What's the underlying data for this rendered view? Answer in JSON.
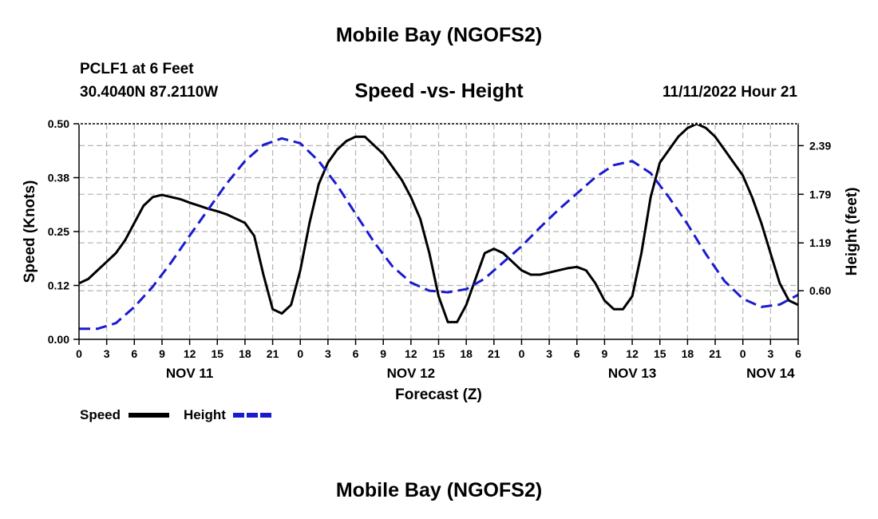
{
  "header": {
    "title": "Mobile Bay (NGOFS2)",
    "station": "PCLF1 at 6 Feet",
    "coordinates": "30.4040N  87.2110W",
    "subtitle": "Speed -vs- Height",
    "datetime": "11/11/2022 Hour 21",
    "footer_title": "Mobile Bay (NGOFS2)"
  },
  "chart_data": {
    "type": "line",
    "title": "Speed -vs- Height",
    "xlabel": "Forecast (Z)",
    "ylabel": "Speed (Knots)",
    "y2label": "Height (feet)",
    "grid": true,
    "xlim": [
      0,
      78
    ],
    "ylim": [
      0,
      0.5
    ],
    "y2lim": [
      0,
      2.66
    ],
    "x_tick_values": [
      0,
      3,
      6,
      9,
      12,
      15,
      18,
      21,
      24,
      27,
      30,
      33,
      36,
      39,
      42,
      45,
      48,
      51,
      54,
      57,
      60,
      63,
      66,
      69,
      72,
      75,
      78
    ],
    "x_tick_labels": [
      "0",
      "3",
      "6",
      "9",
      "12",
      "15",
      "18",
      "21",
      "0",
      "3",
      "6",
      "9",
      "12",
      "15",
      "18",
      "21",
      "0",
      "3",
      "6",
      "9",
      "12",
      "15",
      "18",
      "21",
      "0",
      "3",
      "6"
    ],
    "date_labels": [
      {
        "label": "NOV 11",
        "x": 12
      },
      {
        "label": "NOV 12",
        "x": 36
      },
      {
        "label": "NOV 13",
        "x": 60
      },
      {
        "label": "NOV 14",
        "x": 75
      }
    ],
    "y_tick_values": [
      0,
      0.125,
      0.25,
      0.375,
      0.5
    ],
    "y_tick_labels": [
      "0.00",
      "0.12",
      "0.25",
      "0.38",
      "0.50"
    ],
    "y2_tick_values": [
      0.6,
      1.19,
      1.79,
      2.39
    ],
    "y2_tick_labels": [
      "0.60",
      "1.19",
      "1.79",
      "2.39"
    ],
    "legend_position": "bottom-left",
    "series": [
      {
        "name": "Speed",
        "axis": "left",
        "color": "#000000",
        "style": "solid",
        "x": [
          0,
          1,
          2,
          3,
          4,
          5,
          6,
          7,
          8,
          9,
          10,
          11,
          12,
          13,
          14,
          15,
          16,
          17,
          18,
          19,
          20,
          21,
          22,
          23,
          24,
          25,
          26,
          27,
          28,
          29,
          30,
          31,
          32,
          33,
          34,
          35,
          36,
          37,
          38,
          39,
          40,
          41,
          42,
          43,
          44,
          45,
          46,
          47,
          48,
          49,
          50,
          51,
          52,
          53,
          54,
          55,
          56,
          57,
          58,
          59,
          60,
          61,
          62,
          63,
          64,
          65,
          66,
          67,
          68,
          69,
          70,
          71,
          72,
          73,
          74,
          75,
          76,
          77,
          78
        ],
        "values": [
          0.13,
          0.14,
          0.16,
          0.18,
          0.2,
          0.23,
          0.27,
          0.31,
          0.33,
          0.335,
          0.33,
          0.325,
          0.317,
          0.31,
          0.303,
          0.297,
          0.29,
          0.28,
          0.27,
          0.24,
          0.15,
          0.07,
          0.06,
          0.08,
          0.16,
          0.27,
          0.36,
          0.41,
          0.44,
          0.46,
          0.47,
          0.47,
          0.45,
          0.43,
          0.4,
          0.37,
          0.33,
          0.28,
          0.2,
          0.1,
          0.04,
          0.04,
          0.08,
          0.14,
          0.2,
          0.21,
          0.2,
          0.18,
          0.16,
          0.15,
          0.15,
          0.155,
          0.16,
          0.165,
          0.168,
          0.16,
          0.13,
          0.09,
          0.07,
          0.07,
          0.1,
          0.2,
          0.33,
          0.41,
          0.44,
          0.47,
          0.49,
          0.5,
          0.49,
          0.47,
          0.44,
          0.41,
          0.38,
          0.33,
          0.27,
          0.2,
          0.13,
          0.09,
          0.08
        ]
      },
      {
        "name": "Height",
        "axis": "right",
        "color": "#1a1ad0",
        "style": "dashed",
        "x": [
          0,
          2,
          4,
          6,
          8,
          10,
          12,
          14,
          16,
          18,
          20,
          22,
          24,
          26,
          28,
          30,
          32,
          34,
          36,
          38,
          40,
          42,
          44,
          46,
          48,
          50,
          52,
          54,
          56,
          58,
          60,
          62,
          64,
          66,
          68,
          70,
          72,
          74,
          76,
          78
        ],
        "values": [
          0.13,
          0.13,
          0.2,
          0.4,
          0.65,
          0.95,
          1.28,
          1.6,
          1.92,
          2.2,
          2.4,
          2.48,
          2.42,
          2.2,
          1.9,
          1.55,
          1.2,
          0.9,
          0.7,
          0.6,
          0.58,
          0.62,
          0.75,
          0.95,
          1.15,
          1.38,
          1.6,
          1.8,
          2.0,
          2.15,
          2.2,
          2.05,
          1.75,
          1.42,
          1.05,
          0.72,
          0.5,
          0.4,
          0.43,
          0.55
        ]
      }
    ]
  }
}
